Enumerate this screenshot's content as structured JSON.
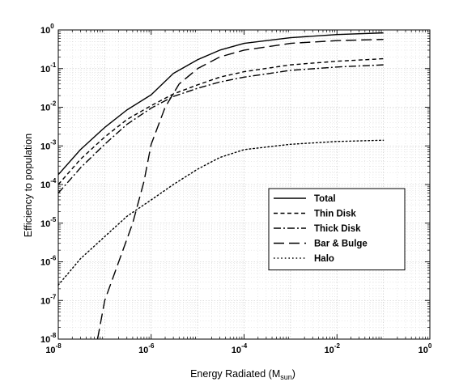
{
  "chart_data": {
    "type": "line",
    "xlabel": "Energy Radiated (M",
    "xlabel_sub": "sun",
    "xlabel_close": ")",
    "ylabel": "Efficiency to population",
    "xscale": "log",
    "yscale": "log",
    "xlim": [
      1e-08,
      1
    ],
    "ylim": [
      1e-08,
      1
    ],
    "grid": true,
    "legend_position": "lower-right",
    "x_ticks": [
      {
        "base": "10",
        "exp": "-8",
        "value": 1e-08
      },
      {
        "base": "10",
        "exp": "-6",
        "value": 1e-06
      },
      {
        "base": "10",
        "exp": "-4",
        "value": 0.0001
      },
      {
        "base": "10",
        "exp": "-2",
        "value": 0.01
      },
      {
        "base": "10",
        "exp": "0",
        "value": 1
      }
    ],
    "y_ticks": [
      {
        "base": "10",
        "exp": "0",
        "value": 1
      },
      {
        "base": "10",
        "exp": "-1",
        "value": 0.1
      },
      {
        "base": "10",
        "exp": "-2",
        "value": 0.01
      },
      {
        "base": "10",
        "exp": "-3",
        "value": 0.001
      },
      {
        "base": "10",
        "exp": "-4",
        "value": 0.0001
      },
      {
        "base": "10",
        "exp": "-5",
        "value": 1e-05
      },
      {
        "base": "10",
        "exp": "-6",
        "value": 1e-06
      },
      {
        "base": "10",
        "exp": "-7",
        "value": 1e-07
      },
      {
        "base": "10",
        "exp": "-8",
        "value": 1e-08
      }
    ],
    "series": [
      {
        "name": "Total",
        "style": "solid",
        "x": [
          1e-08,
          3e-08,
          1e-07,
          3e-07,
          1e-06,
          3e-06,
          1e-05,
          3e-05,
          0.0001,
          0.001,
          0.01,
          0.1
        ],
        "y": [
          0.00018,
          0.0008,
          0.003,
          0.0085,
          0.021,
          0.075,
          0.17,
          0.3,
          0.45,
          0.63,
          0.76,
          0.84
        ]
      },
      {
        "name": "Thin Disk",
        "style": "dashed-short",
        "x": [
          1e-08,
          3e-08,
          1e-07,
          3e-07,
          1e-06,
          3e-06,
          1e-05,
          3e-05,
          0.0001,
          0.001,
          0.01,
          0.1
        ],
        "y": [
          0.0001,
          0.00045,
          0.0017,
          0.0048,
          0.011,
          0.022,
          0.038,
          0.06,
          0.083,
          0.125,
          0.155,
          0.18
        ]
      },
      {
        "name": "Thick Disk",
        "style": "dash-dot",
        "x": [
          1e-08,
          3e-08,
          1e-07,
          3e-07,
          1e-06,
          3e-06,
          1e-05,
          3e-05,
          0.0001,
          0.001,
          0.01,
          0.1
        ],
        "y": [
          6e-05,
          0.00027,
          0.0011,
          0.0036,
          0.0095,
          0.019,
          0.031,
          0.045,
          0.06,
          0.09,
          0.11,
          0.125
        ]
      },
      {
        "name": "Bar & Bulge",
        "style": "dashed-long",
        "x": [
          7e-08,
          1e-07,
          2e-07,
          4e-07,
          7e-07,
          1e-06,
          2e-06,
          4e-06,
          1e-05,
          3e-05,
          0.0001,
          0.001,
          0.01,
          0.1
        ],
        "y": [
          1e-08,
          1e-07,
          1e-06,
          1e-05,
          0.00012,
          0.0011,
          0.01,
          0.04,
          0.1,
          0.2,
          0.3,
          0.45,
          0.53,
          0.57
        ]
      },
      {
        "name": "Halo",
        "style": "dotted",
        "x": [
          1e-08,
          3e-08,
          1e-07,
          3e-07,
          1e-06,
          3e-06,
          1e-05,
          3e-05,
          0.0001,
          0.001,
          0.01,
          0.1
        ],
        "y": [
          2.5e-07,
          1.2e-06,
          4.5e-06,
          1.5e-05,
          4e-05,
          0.0001,
          0.00025,
          0.0005,
          0.0008,
          0.0011,
          0.0013,
          0.0014
        ]
      }
    ]
  }
}
